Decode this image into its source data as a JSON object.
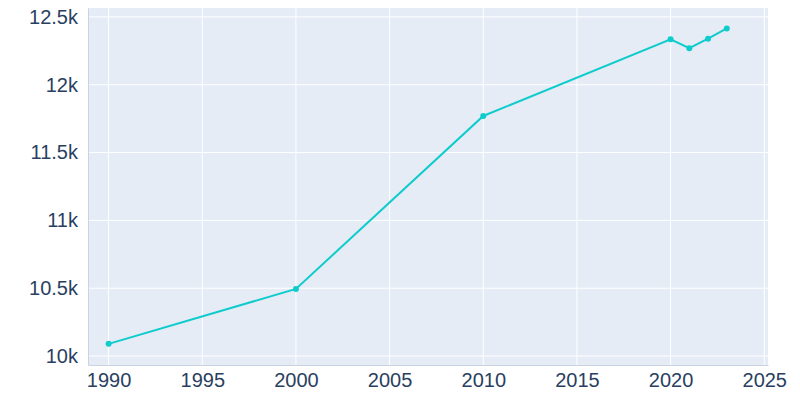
{
  "chart_data": {
    "type": "line",
    "x": [
      1990,
      2000,
      2010,
      2020,
      2021,
      2022,
      2023
    ],
    "values": [
      10090,
      10495,
      11770,
      12335,
      12270,
      12340,
      12415
    ],
    "color": "#0fcccc",
    "marker": "circle",
    "grid": true,
    "xlim": [
      1988.9,
      2025.2
    ],
    "xticks": [
      1990,
      1995,
      2000,
      2005,
      2010,
      2015,
      2020,
      2025
    ],
    "ylim": [
      9934,
      12566
    ],
    "yticks": [
      {
        "value": 10000,
        "label": "10k"
      },
      {
        "value": 10500,
        "label": "10.5k"
      },
      {
        "value": 11000,
        "label": "11k"
      },
      {
        "value": 11500,
        "label": "11.5k"
      },
      {
        "value": 12000,
        "label": "12k"
      },
      {
        "value": 12500,
        "label": "12.5k"
      }
    ]
  }
}
